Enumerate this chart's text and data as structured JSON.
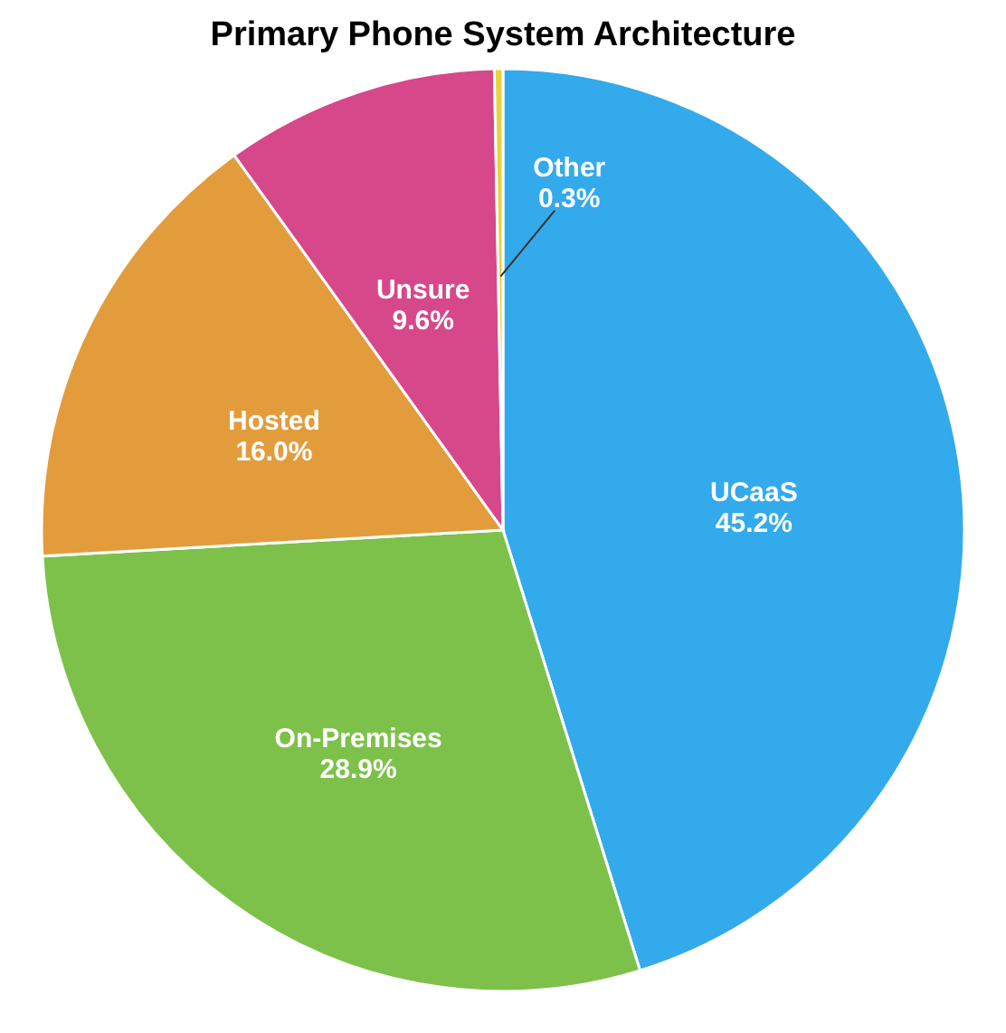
{
  "chart_data": {
    "type": "pie",
    "title": "Primary Phone System Architecture",
    "categories": [
      "UCaaS",
      "On-Premises",
      "Hosted",
      "Unsure",
      "Other"
    ],
    "values": [
      45.2,
      28.9,
      16.0,
      9.6,
      0.3
    ],
    "colors": [
      "#33aaeb",
      "#7dc14b",
      "#e39c3c",
      "#d6488a",
      "#e8d43c"
    ],
    "value_labels": [
      "45.2%",
      "28.9%",
      "16.0%",
      "9.6%",
      "0.3%"
    ],
    "legend": false
  }
}
